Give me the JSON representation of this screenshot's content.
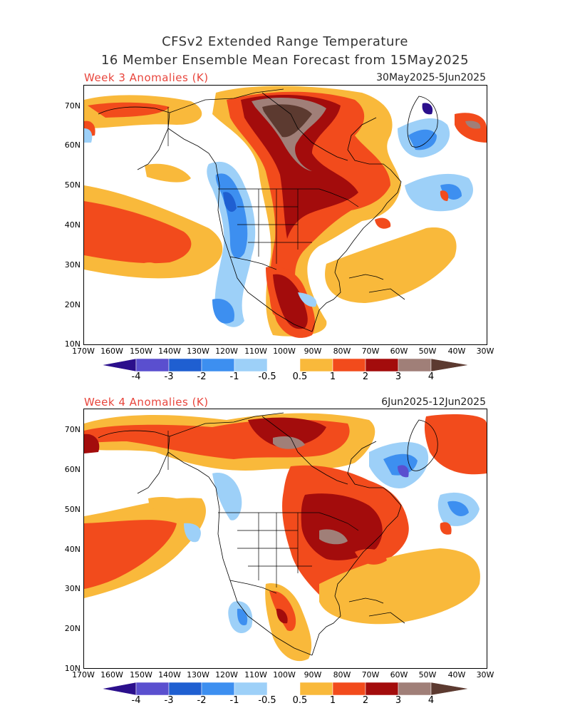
{
  "title_line1": "CFSv2 Extended Range Temperature",
  "title_line2": "16 Member Ensemble Mean Forecast from 15May2025",
  "panels": [
    {
      "label": "Week 3 Anomalies (K)",
      "dates": "30May2025-5Jun2025"
    },
    {
      "label": "Week 4 Anomalies (K)",
      "dates": "6Jun2025-12Jun2025"
    }
  ],
  "lat_labels": [
    "70N",
    "60N",
    "50N",
    "40N",
    "30N",
    "20N",
    "10N"
  ],
  "lon_labels": [
    "170W",
    "160W",
    "150W",
    "140W",
    "130W",
    "120W",
    "110W",
    "100W",
    "90W",
    "80W",
    "70W",
    "60W",
    "50W",
    "40W",
    "30W"
  ],
  "legend": {
    "labels": [
      "-4",
      "-3",
      "-2",
      "-1",
      "-0.5",
      "0.5",
      "1",
      "2",
      "3",
      "4"
    ],
    "colors": {
      "lt_-4": "#2b0f8c",
      "m4_m3": "#5a4fcf",
      "m3_m2": "#1f5fd1",
      "m2_m1": "#3d8ff0",
      "m1_m05": "#9dd0f8",
      "neutral": "#ffffff",
      "p05_p1": "#f9b93b",
      "p1_p2": "#f24b1c",
      "p2_p3": "#a30c0c",
      "p3_p4": "#a07f78",
      "gt_4": "#5c3a30"
    }
  }
}
